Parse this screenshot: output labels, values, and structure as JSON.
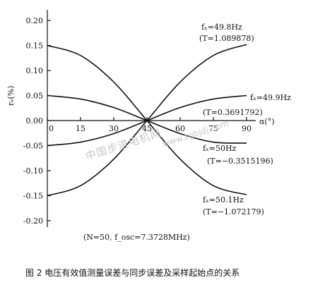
{
  "chart_data": {
    "type": "line",
    "xlabel": "α(°)",
    "ylabel": "rₑ(%)",
    "xlim": [
      0,
      90
    ],
    "ylim": [
      -0.2,
      0.2
    ],
    "x_ticks": [
      "0",
      "15",
      "30",
      "45",
      "60",
      "75",
      "90"
    ],
    "y_ticks": [
      "0.20",
      "0.15",
      "0.10",
      "0.05",
      "0.00",
      "-0.05",
      "-0.10",
      "-0.15",
      "-0.20"
    ],
    "series": [
      {
        "name": "fₓ=49.8Hz",
        "note": "(T=1.089878)",
        "x": [
          0,
          15,
          30,
          45,
          60,
          75,
          90
        ],
        "y": [
          -0.15,
          -0.13,
          -0.077,
          0.0,
          0.077,
          0.13,
          0.152
        ]
      },
      {
        "name": "fₓ=49.9Hz",
        "note": "(T=0.3691792)",
        "x": [
          0,
          15,
          30,
          45,
          60,
          75,
          90
        ],
        "y": [
          -0.05,
          -0.043,
          -0.026,
          0.0,
          0.026,
          0.043,
          0.05
        ]
      },
      {
        "name": "fₓ=50Hz",
        "note": "(T=−0.3515196)",
        "x": [
          0,
          15,
          30,
          45,
          60,
          75,
          90
        ],
        "y": [
          0.05,
          0.043,
          0.026,
          0.0,
          -0.026,
          -0.043,
          -0.045
        ]
      },
      {
        "name": "fₓ=50.1Hz",
        "note": "(T=−1.072179)",
        "x": [
          0,
          15,
          30,
          45,
          60,
          75,
          90
        ],
        "y": [
          0.15,
          0.13,
          0.077,
          0.0,
          -0.077,
          -0.13,
          -0.148
        ]
      }
    ]
  },
  "params": "(N=50, f_osc=7.3728MHz)",
  "caption": "图 2    电压有效值测量误差与同步误差及采样起始点的关系",
  "watermark": "中国步进电机网",
  "watermark2": "www.zgbjdj.com"
}
